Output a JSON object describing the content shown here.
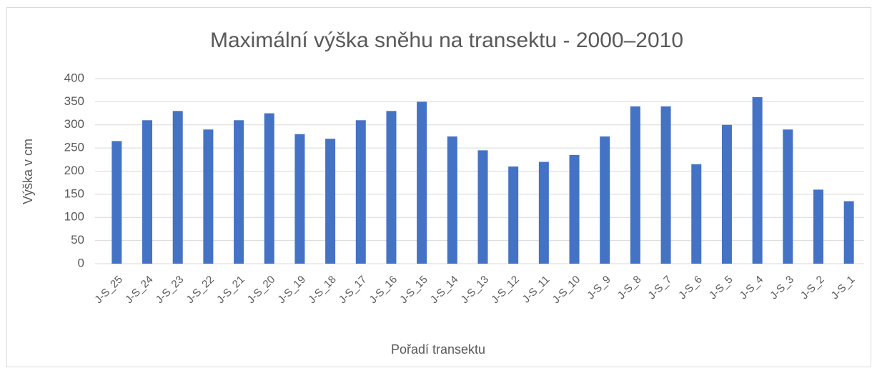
{
  "chart_data": {
    "type": "bar",
    "title": "Maximální výška sněhu na transektu - 2000–2010",
    "x_label": "Pořadí transektu",
    "y_label": "Výška v cm",
    "categories": [
      "J-S_25",
      "J-S_24",
      "J-S_23",
      "J-S_22",
      "J-S_21",
      "J-S_20",
      "J-S_19",
      "J-S_18",
      "J-S_17",
      "J-S_16",
      "J-S_15",
      "J-S_14",
      "J-S_13",
      "J-S_12",
      "J-S_11",
      "J-S_10",
      "J-S_9",
      "J-S_8",
      "J-S_7",
      "J-S_6",
      "J-S_5",
      "J-S_4",
      "J-S_3",
      "J-S_2",
      "J-S_1"
    ],
    "values": [
      265,
      310,
      330,
      290,
      310,
      325,
      280,
      270,
      310,
      330,
      350,
      275,
      245,
      210,
      220,
      235,
      275,
      340,
      340,
      215,
      300,
      360,
      290,
      160,
      135
    ],
    "color": "#4472c4",
    "ylim": [
      0,
      400
    ],
    "yticks": [
      0,
      50,
      100,
      150,
      200,
      250,
      300,
      350,
      400
    ],
    "grid": true
  }
}
